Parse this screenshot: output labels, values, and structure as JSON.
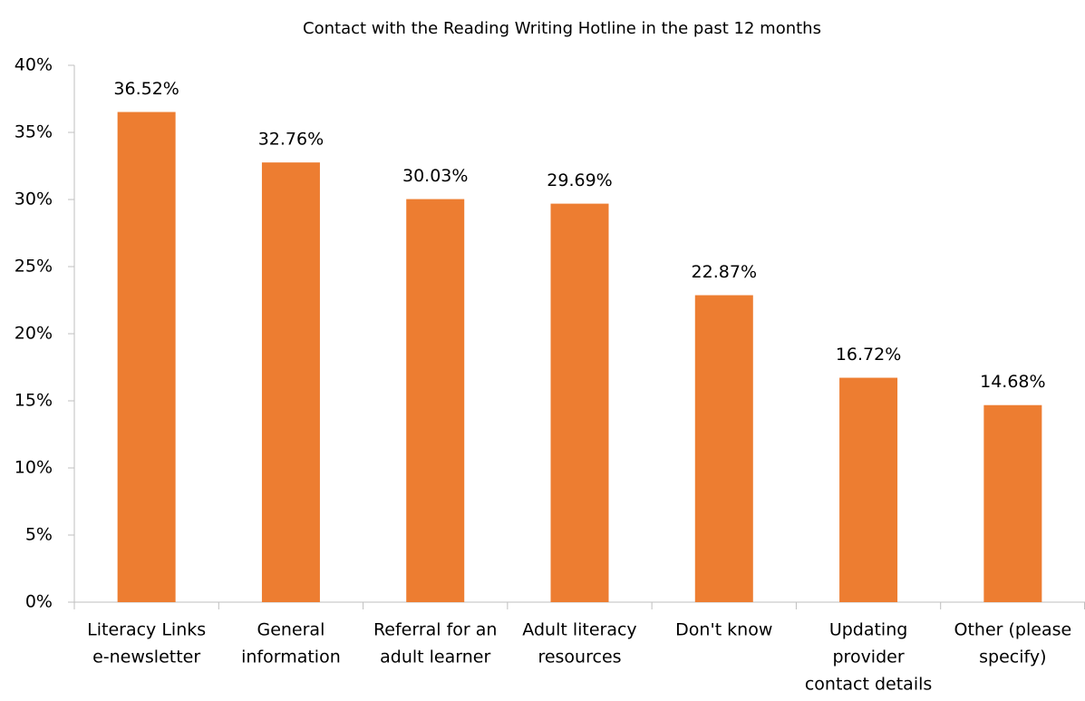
{
  "chart_data": {
    "type": "bar",
    "title": "Contact with the Reading Writing Hotline in the past 12 months",
    "categories": [
      [
        "Literacy Links",
        "e-newsletter"
      ],
      [
        "General",
        "information"
      ],
      [
        "Referral for an",
        "adult learner"
      ],
      [
        "Adult literacy",
        "resources"
      ],
      [
        "Don't know"
      ],
      [
        "Updating",
        "provider",
        "contact details"
      ],
      [
        "Other (please",
        "specify)"
      ]
    ],
    "values": [
      36.52,
      32.76,
      30.03,
      29.69,
      22.87,
      16.72,
      14.68
    ],
    "value_labels": [
      "36.52%",
      "32.76%",
      "30.03%",
      "29.69%",
      "22.87%",
      "16.72%",
      "14.68%"
    ],
    "color": "#ed7d31",
    "ylim": [
      0,
      40
    ],
    "yticks": [
      {
        "value": 0,
        "label": "0%"
      },
      {
        "value": 5,
        "label": "5%"
      },
      {
        "value": 10,
        "label": "10%"
      },
      {
        "value": 15,
        "label": "15%"
      },
      {
        "value": 20,
        "label": "20%"
      },
      {
        "value": 25,
        "label": "25%"
      },
      {
        "value": 30,
        "label": "30%"
      },
      {
        "value": 35,
        "label": "35%"
      },
      {
        "value": 40,
        "label": "40%"
      }
    ],
    "grid": false
  }
}
